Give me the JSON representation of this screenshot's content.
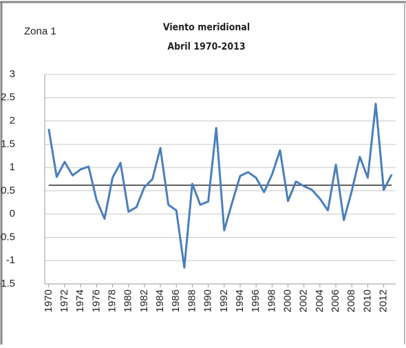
{
  "chart_data": {
    "type": "line",
    "title": "Viento meridional",
    "subtitle": "Abril 1970-2013",
    "annotation": "Zona  1",
    "x": [
      1970,
      1971,
      1972,
      1973,
      1974,
      1975,
      1976,
      1977,
      1978,
      1979,
      1980,
      1981,
      1982,
      1983,
      1984,
      1985,
      1986,
      1987,
      1988,
      1989,
      1990,
      1991,
      1992,
      1993,
      1994,
      1995,
      1996,
      1997,
      1998,
      1999,
      2000,
      2001,
      2002,
      2003,
      2004,
      2005,
      2006,
      2007,
      2008,
      2009,
      2010,
      2011,
      2012,
      2013
    ],
    "values": [
      1.83,
      0.8,
      1.12,
      0.83,
      0.96,
      1.02,
      0.3,
      -0.1,
      0.78,
      1.1,
      0.05,
      0.15,
      0.58,
      0.75,
      1.42,
      0.2,
      0.08,
      -1.15,
      0.65,
      0.2,
      0.27,
      1.85,
      -0.35,
      0.25,
      0.82,
      0.9,
      0.78,
      0.47,
      0.85,
      1.37,
      0.28,
      0.7,
      0.6,
      0.52,
      0.33,
      0.08,
      1.06,
      -0.13,
      0.5,
      1.23,
      0.78,
      2.37,
      0.52,
      0.85
    ],
    "color": "#4a7ebb",
    "reference_line": {
      "value": 0.62,
      "color": "#000000"
    },
    "xlim": [
      1969.5,
      2013.5
    ],
    "xticks": [
      1970,
      1972,
      1974,
      1976,
      1978,
      1980,
      1982,
      1984,
      1986,
      1988,
      1990,
      1992,
      1994,
      1996,
      1998,
      2000,
      2002,
      2004,
      2006,
      2008,
      2010,
      2012
    ],
    "ylim": [
      -1.5,
      3
    ],
    "yticks": [
      -1.5,
      -1,
      -0.5,
      0,
      0.5,
      1,
      1.5,
      2,
      2.5,
      3
    ],
    "grid": true
  }
}
